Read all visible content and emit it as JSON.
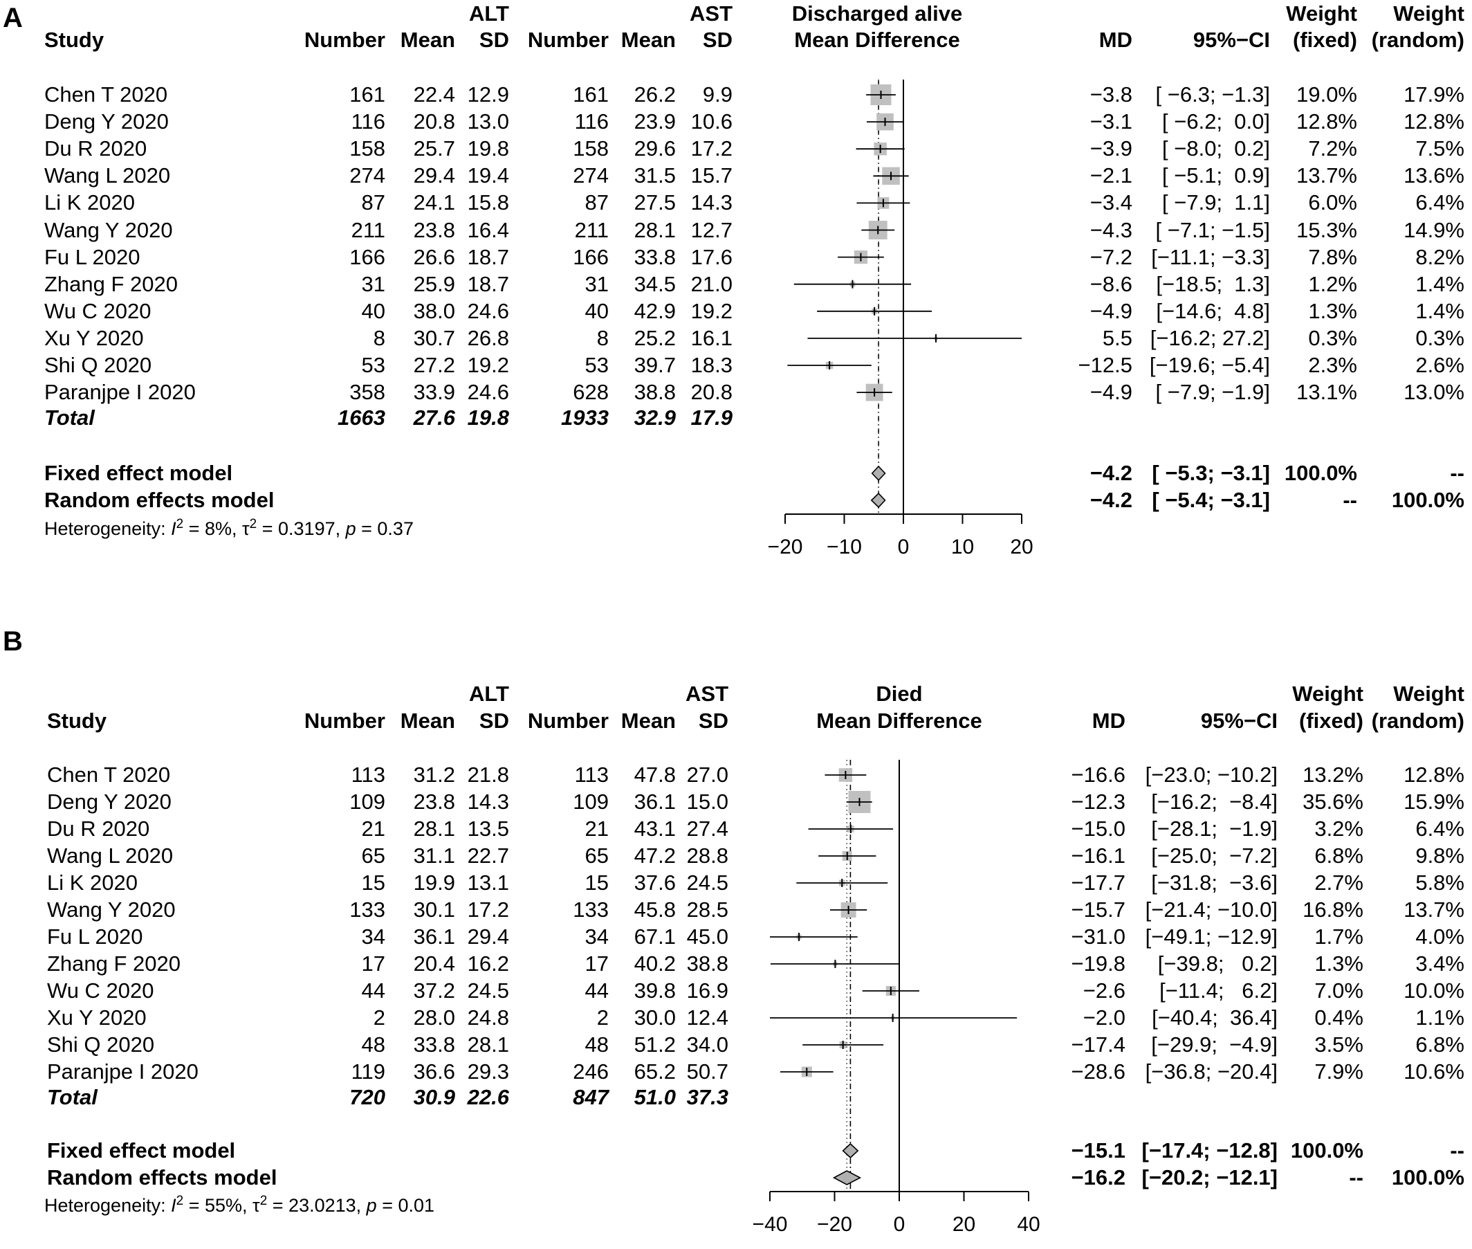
{
  "chart_data": [
    {
      "type": "forest",
      "panel_label": "A",
      "group1_label": "ALT",
      "group2_label": "AST",
      "plot_title_line1": "Discharged alive",
      "plot_title_line2": "Mean Difference",
      "headers": {
        "study": "Study",
        "number": "Number",
        "mean": "Mean",
        "sd": "SD",
        "md": "MD",
        "ci": "95%−CI",
        "weight_fixed_1": "Weight",
        "weight_fixed_2": "(fixed)",
        "weight_random_1": "Weight",
        "weight_random_2": "(random)"
      },
      "studies": [
        {
          "name": "Chen T 2020",
          "n1": "161",
          "mean1": "22.4",
          "sd1": "12.9",
          "n2": "161",
          "mean2": "26.2",
          "sd2": "9.9",
          "md": -3.8,
          "lo": -6.3,
          "hi": -1.3,
          "md_text": "−3.8",
          "ci_text": "[ −6.3; −1.3]",
          "w_fixed": "19.0%",
          "w_random": "17.9%",
          "wf": 19.0
        },
        {
          "name": "Deng Y 2020",
          "n1": "116",
          "mean1": "20.8",
          "sd1": "13.0",
          "n2": "116",
          "mean2": "23.9",
          "sd2": "10.6",
          "md": -3.1,
          "lo": -6.2,
          "hi": 0.0,
          "md_text": "−3.1",
          "ci_text": "[ −6.2;  0.0]",
          "w_fixed": "12.8%",
          "w_random": "12.8%",
          "wf": 12.8
        },
        {
          "name": "Du R 2020",
          "n1": "158",
          "mean1": "25.7",
          "sd1": "19.8",
          "n2": "158",
          "mean2": "29.6",
          "sd2": "17.2",
          "md": -3.9,
          "lo": -8.0,
          "hi": 0.2,
          "md_text": "−3.9",
          "ci_text": "[ −8.0;  0.2]",
          "w_fixed": "7.2%",
          "w_random": "7.5%",
          "wf": 7.2
        },
        {
          "name": "Wang L 2020",
          "n1": "274",
          "mean1": "29.4",
          "sd1": "19.4",
          "n2": "274",
          "mean2": "31.5",
          "sd2": "15.7",
          "md": -2.1,
          "lo": -5.1,
          "hi": 0.9,
          "md_text": "−2.1",
          "ci_text": "[ −5.1;  0.9]",
          "w_fixed": "13.7%",
          "w_random": "13.6%",
          "wf": 13.7
        },
        {
          "name": "Li K 2020",
          "n1": "87",
          "mean1": "24.1",
          "sd1": "15.8",
          "n2": "87",
          "mean2": "27.5",
          "sd2": "14.3",
          "md": -3.4,
          "lo": -7.9,
          "hi": 1.1,
          "md_text": "−3.4",
          "ci_text": "[ −7.9;  1.1]",
          "w_fixed": "6.0%",
          "w_random": "6.4%",
          "wf": 6.0
        },
        {
          "name": "Wang Y 2020",
          "n1": "211",
          "mean1": "23.8",
          "sd1": "16.4",
          "n2": "211",
          "mean2": "28.1",
          "sd2": "12.7",
          "md": -4.3,
          "lo": -7.1,
          "hi": -1.5,
          "md_text": "−4.3",
          "ci_text": "[ −7.1; −1.5]",
          "w_fixed": "15.3%",
          "w_random": "14.9%",
          "wf": 15.3
        },
        {
          "name": "Fu L 2020",
          "n1": "166",
          "mean1": "26.6",
          "sd1": "18.7",
          "n2": "166",
          "mean2": "33.8",
          "sd2": "17.6",
          "md": -7.2,
          "lo": -11.1,
          "hi": -3.3,
          "md_text": "−7.2",
          "ci_text": "[−11.1; −3.3]",
          "w_fixed": "7.8%",
          "w_random": "8.2%",
          "wf": 7.8
        },
        {
          "name": "Zhang F 2020",
          "n1": "31",
          "mean1": "25.9",
          "sd1": "18.7",
          "n2": "31",
          "mean2": "34.5",
          "sd2": "21.0",
          "md": -8.6,
          "lo": -18.5,
          "hi": 1.3,
          "md_text": "−8.6",
          "ci_text": "[−18.5;  1.3]",
          "w_fixed": "1.2%",
          "w_random": "1.4%",
          "wf": 1.2
        },
        {
          "name": "Wu C 2020",
          "n1": "40",
          "mean1": "38.0",
          "sd1": "24.6",
          "n2": "40",
          "mean2": "42.9",
          "sd2": "19.2",
          "md": -4.9,
          "lo": -14.6,
          "hi": 4.8,
          "md_text": "−4.9",
          "ci_text": "[−14.6;  4.8]",
          "w_fixed": "1.3%",
          "w_random": "1.4%",
          "wf": 1.3
        },
        {
          "name": "Xu Y 2020",
          "n1": "8",
          "mean1": "30.7",
          "sd1": "26.8",
          "n2": "8",
          "mean2": "25.2",
          "sd2": "16.1",
          "md": 5.5,
          "lo": -16.2,
          "hi": 27.2,
          "md_text": "5.5",
          "ci_text": "[−16.2; 27.2]",
          "w_fixed": "0.3%",
          "w_random": "0.3%",
          "wf": 0.3
        },
        {
          "name": "Shi Q 2020",
          "n1": "53",
          "mean1": "27.2",
          "sd1": "19.2",
          "n2": "53",
          "mean2": "39.7",
          "sd2": "18.3",
          "md": -12.5,
          "lo": -19.6,
          "hi": -5.4,
          "md_text": "−12.5",
          "ci_text": "[−19.6; −5.4]",
          "w_fixed": "2.3%",
          "w_random": "2.6%",
          "wf": 2.3
        },
        {
          "name": "Paranjpe I 2020",
          "n1": "358",
          "mean1": "33.9",
          "sd1": "24.6",
          "n2": "628",
          "mean2": "38.8",
          "sd2": "20.8",
          "md": -4.9,
          "lo": -7.9,
          "hi": -1.9,
          "md_text": "−4.9",
          "ci_text": "[ −7.9; −1.9]",
          "w_fixed": "13.1%",
          "w_random": "13.0%",
          "wf": 13.1
        }
      ],
      "total": {
        "label": "Total",
        "n1": "1663",
        "mean1": "27.6",
        "sd1": "19.8",
        "n2": "1933",
        "mean2": "32.9",
        "sd2": "17.9"
      },
      "fixed": {
        "label": "Fixed effect model",
        "md": -4.2,
        "lo": -5.3,
        "hi": -3.1,
        "md_text": "−4.2",
        "ci_text": "[ −5.3; −3.1]",
        "w_fixed": "100.0%",
        "w_random": "--"
      },
      "random": {
        "label": "Random effects model",
        "md": -4.2,
        "lo": -5.4,
        "hi": -3.1,
        "md_text": "−4.2",
        "ci_text": "[ −5.4; −3.1]",
        "w_fixed": "--",
        "w_random": "100.0%"
      },
      "heterogeneity": {
        "prefix": "Heterogeneity: ",
        "I2_label": "I",
        "I2_value": " = 8%, ",
        "tau_label": "τ",
        "tau_value": " = 0.3197, ",
        "p_label": "p",
        "p_value": " = 0.37"
      },
      "xaxis": {
        "min": -20,
        "max": 20,
        "ticks": [
          -20,
          -10,
          0,
          10,
          20
        ]
      }
    },
    {
      "type": "forest",
      "panel_label": "B",
      "group1_label": "ALT",
      "group2_label": "AST",
      "plot_title_line1": "Died",
      "plot_title_line2": "Mean Difference",
      "headers": {
        "study": "Study",
        "number": "Number",
        "mean": "Mean",
        "sd": "SD",
        "md": "MD",
        "ci": "95%−CI",
        "weight_fixed_1": "Weight",
        "weight_fixed_2": "(fixed)",
        "weight_random_1": "Weight",
        "weight_random_2": "(random)"
      },
      "studies": [
        {
          "name": "Chen T 2020",
          "n1": "113",
          "mean1": "31.2",
          "sd1": "21.8",
          "n2": "113",
          "mean2": "47.8",
          "sd2": "27.0",
          "md": -16.6,
          "lo": -23.0,
          "hi": -10.2,
          "md_text": "−16.6",
          "ci_text": "[−23.0; −10.2]",
          "w_fixed": "13.2%",
          "w_random": "12.8%",
          "wf": 13.2
        },
        {
          "name": "Deng Y 2020",
          "n1": "109",
          "mean1": "23.8",
          "sd1": "14.3",
          "n2": "109",
          "mean2": "36.1",
          "sd2": "15.0",
          "md": -12.3,
          "lo": -16.2,
          "hi": -8.4,
          "md_text": "−12.3",
          "ci_text": "[−16.2;  −8.4]",
          "w_fixed": "35.6%",
          "w_random": "15.9%",
          "wf": 35.6
        },
        {
          "name": "Du R 2020",
          "n1": "21",
          "mean1": "28.1",
          "sd1": "13.5",
          "n2": "21",
          "mean2": "43.1",
          "sd2": "27.4",
          "md": -15.0,
          "lo": -28.1,
          "hi": -1.9,
          "md_text": "−15.0",
          "ci_text": "[−28.1;  −1.9]",
          "w_fixed": "3.2%",
          "w_random": "6.4%",
          "wf": 3.2
        },
        {
          "name": "Wang L 2020",
          "n1": "65",
          "mean1": "31.1",
          "sd1": "22.7",
          "n2": "65",
          "mean2": "47.2",
          "sd2": "28.8",
          "md": -16.1,
          "lo": -25.0,
          "hi": -7.2,
          "md_text": "−16.1",
          "ci_text": "[−25.0;  −7.2]",
          "w_fixed": "6.8%",
          "w_random": "9.8%",
          "wf": 6.8
        },
        {
          "name": "Li K 2020",
          "n1": "15",
          "mean1": "19.9",
          "sd1": "13.1",
          "n2": "15",
          "mean2": "37.6",
          "sd2": "24.5",
          "md": -17.7,
          "lo": -31.8,
          "hi": -3.6,
          "md_text": "−17.7",
          "ci_text": "[−31.8;  −3.6]",
          "w_fixed": "2.7%",
          "w_random": "5.8%",
          "wf": 2.7
        },
        {
          "name": "Wang Y 2020",
          "n1": "133",
          "mean1": "30.1",
          "sd1": "17.2",
          "n2": "133",
          "mean2": "45.8",
          "sd2": "28.5",
          "md": -15.7,
          "lo": -21.4,
          "hi": -10.0,
          "md_text": "−15.7",
          "ci_text": "[−21.4; −10.0]",
          "w_fixed": "16.8%",
          "w_random": "13.7%",
          "wf": 16.8
        },
        {
          "name": "Fu L 2020",
          "n1": "34",
          "mean1": "36.1",
          "sd1": "29.4",
          "n2": "34",
          "mean2": "67.1",
          "sd2": "45.0",
          "md": -31.0,
          "lo": -49.1,
          "hi": -12.9,
          "md_text": "−31.0",
          "ci_text": "[−49.1; −12.9]",
          "w_fixed": "1.7%",
          "w_random": "4.0%",
          "wf": 1.7
        },
        {
          "name": "Zhang F 2020",
          "n1": "17",
          "mean1": "20.4",
          "sd1": "16.2",
          "n2": "17",
          "mean2": "40.2",
          "sd2": "38.8",
          "md": -19.8,
          "lo": -39.8,
          "hi": 0.2,
          "md_text": "−19.8",
          "ci_text": "[−39.8;   0.2]",
          "w_fixed": "1.3%",
          "w_random": "3.4%",
          "wf": 1.3
        },
        {
          "name": "Wu C 2020",
          "n1": "44",
          "mean1": "37.2",
          "sd1": "24.5",
          "n2": "44",
          "mean2": "39.8",
          "sd2": "16.9",
          "md": -2.6,
          "lo": -11.4,
          "hi": 6.2,
          "md_text": "−2.6",
          "ci_text": "[−11.4;   6.2]",
          "w_fixed": "7.0%",
          "w_random": "10.0%",
          "wf": 7.0
        },
        {
          "name": "Xu Y 2020",
          "n1": "2",
          "mean1": "28.0",
          "sd1": "24.8",
          "n2": "2",
          "mean2": "30.0",
          "sd2": "12.4",
          "md": -2.0,
          "lo": -40.4,
          "hi": 36.4,
          "md_text": "−2.0",
          "ci_text": "[−40.4;  36.4]",
          "w_fixed": "0.4%",
          "w_random": "1.1%",
          "wf": 0.4
        },
        {
          "name": "Shi Q 2020",
          "n1": "48",
          "mean1": "33.8",
          "sd1": "28.1",
          "n2": "48",
          "mean2": "51.2",
          "sd2": "34.0",
          "md": -17.4,
          "lo": -29.9,
          "hi": -4.9,
          "md_text": "−17.4",
          "ci_text": "[−29.9;  −4.9]",
          "w_fixed": "3.5%",
          "w_random": "6.8%",
          "wf": 3.5
        },
        {
          "name": "Paranjpe I 2020",
          "n1": "119",
          "mean1": "36.6",
          "sd1": "29.3",
          "n2": "246",
          "mean2": "65.2",
          "sd2": "50.7",
          "md": -28.6,
          "lo": -36.8,
          "hi": -20.4,
          "md_text": "−28.6",
          "ci_text": "[−36.8; −20.4]",
          "w_fixed": "7.9%",
          "w_random": "10.6%",
          "wf": 7.9
        }
      ],
      "total": {
        "label": "Total",
        "n1": "720",
        "mean1": "30.9",
        "sd1": "22.6",
        "n2": "847",
        "mean2": "51.0",
        "sd2": "37.3"
      },
      "fixed": {
        "label": "Fixed effect model",
        "md": -15.1,
        "lo": -17.4,
        "hi": -12.8,
        "md_text": "−15.1",
        "ci_text": "[−17.4; −12.8]",
        "w_fixed": "100.0%",
        "w_random": "--"
      },
      "random": {
        "label": "Random effects model",
        "md": -16.2,
        "lo": -20.2,
        "hi": -12.1,
        "md_text": "−16.2",
        "ci_text": "[−20.2; −12.1]",
        "w_fixed": "--",
        "w_random": "100.0%"
      },
      "heterogeneity": {
        "prefix": "Heterogeneity: ",
        "I2_label": "I",
        "I2_value": " = 55%, ",
        "tau_label": "τ",
        "tau_value": " = 23.0213, ",
        "p_label": "p",
        "p_value": " = 0.01"
      },
      "xaxis": {
        "min": -40,
        "max": 40,
        "ticks": [
          -40,
          -20,
          0,
          20,
          40
        ]
      }
    }
  ]
}
